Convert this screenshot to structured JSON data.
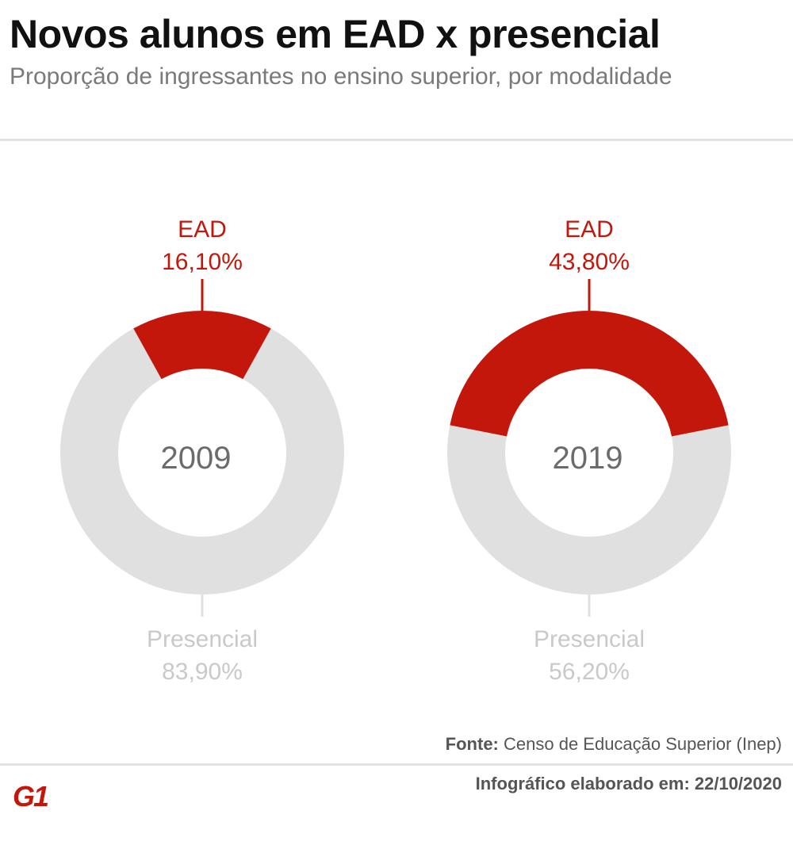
{
  "header": {
    "title": "Novos alunos em EAD x presencial",
    "subtitle": "Proporção de ingressantes no ensino superior, por modalidade"
  },
  "chart_data": [
    {
      "type": "pie",
      "center_label": "2009",
      "slices": [
        {
          "label": "EAD",
          "value_label": "16,10%",
          "value": 16.1,
          "color": "#c4170c"
        },
        {
          "label": "Presencial",
          "value_label": "83,90%",
          "value": 83.9,
          "color": "#e0e0e0"
        }
      ]
    },
    {
      "type": "pie",
      "center_label": "2019",
      "slices": [
        {
          "label": "EAD",
          "value_label": "43,80%",
          "value": 43.8,
          "color": "#c4170c"
        },
        {
          "label": "Presencial",
          "value_label": "56,20%",
          "value": 56.2,
          "color": "#e0e0e0"
        }
      ]
    }
  ],
  "footer": {
    "source_label": "Fonte:",
    "source_text": "Censo de Educação Superior (Inep)",
    "credit": "Infográfico elaborado em: 22/10/2020",
    "logo": "G1"
  }
}
